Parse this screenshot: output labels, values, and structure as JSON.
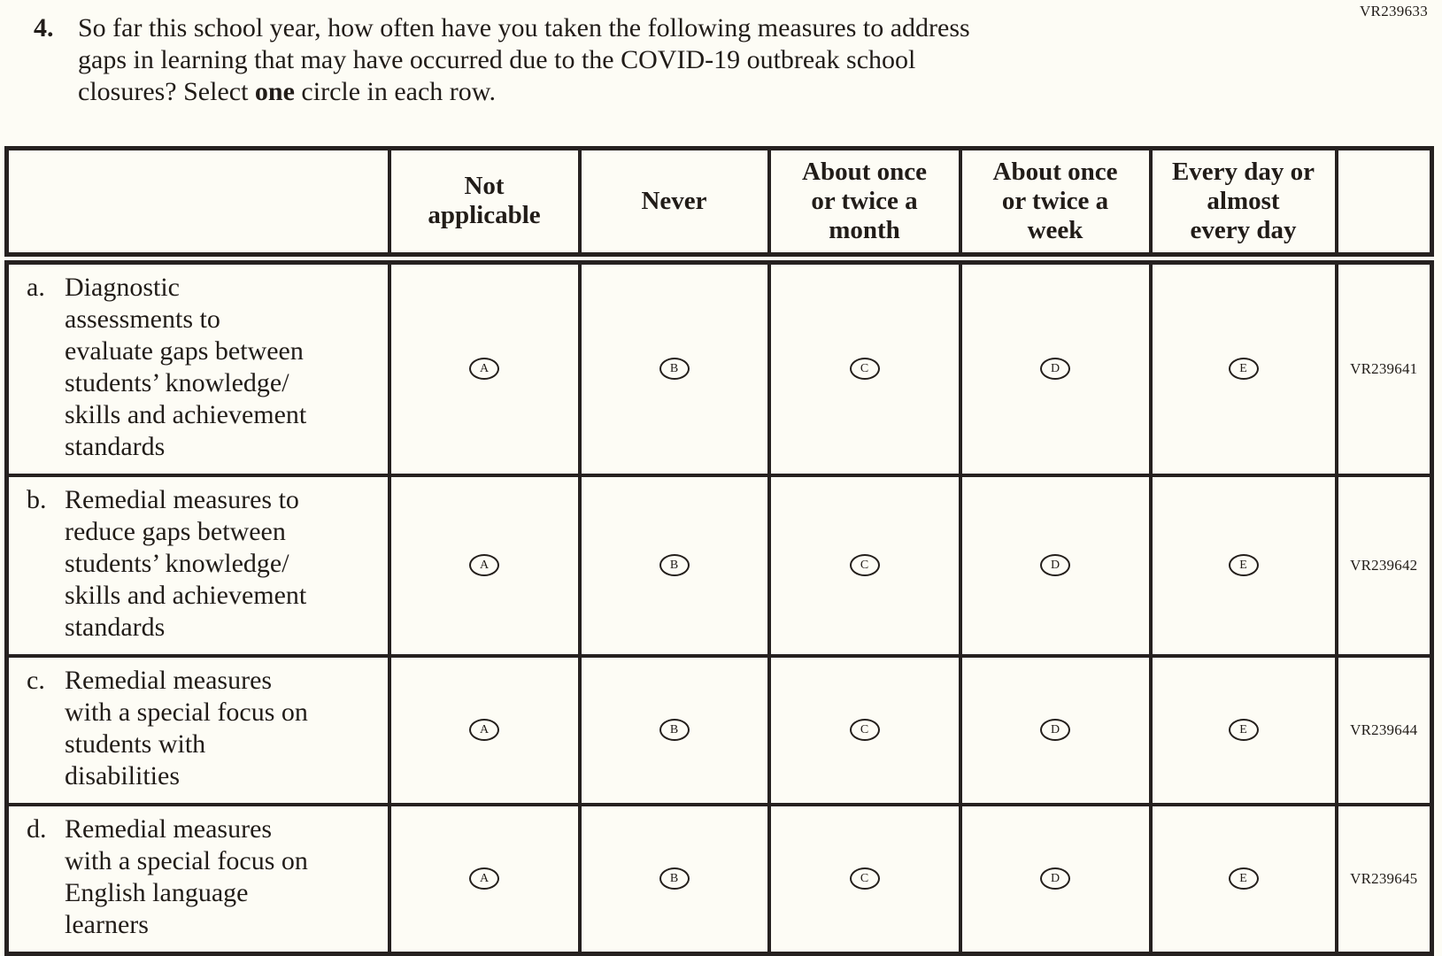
{
  "page": {
    "background": "#fdfcf5",
    "text_color": "#211c18",
    "border_color": "#262120",
    "top_right_code": "VR239633"
  },
  "question": {
    "number": "4.",
    "part1": "So far this school year, how often have you taken the following measures to address\ngaps in learning that may have occurred due to the COVID-19 outbreak school\nclosures? Select ",
    "bold_word": "one",
    "part2": " circle in each row."
  },
  "table": {
    "column_headers": [
      "",
      "Not\napplicable",
      "Never",
      "About once\nor twice a\nmonth",
      "About once\nor twice a\nweek",
      "Every day or\nalmost\nevery day",
      ""
    ],
    "option_letters": [
      "A",
      "B",
      "C",
      "D",
      "E"
    ],
    "rows": [
      {
        "letter": "a.",
        "label": "Diagnostic\nassessments to\nevaluate gaps between\nstudents’ knowledge/\nskills and achievement\nstandards",
        "code": "VR239641"
      },
      {
        "letter": "b.",
        "label": "Remedial measures to\nreduce gaps between\nstudents’ knowledge/\nskills and achievement\nstandards",
        "code": "VR239642"
      },
      {
        "letter": "c.",
        "label": "Remedial measures\nwith a special focus on\nstudents with\ndisabilities",
        "code": "VR239644"
      },
      {
        "letter": "d.",
        "label": "Remedial measures\nwith a special focus on\nEnglish language\nlearners",
        "code": "VR239645"
      }
    ]
  }
}
